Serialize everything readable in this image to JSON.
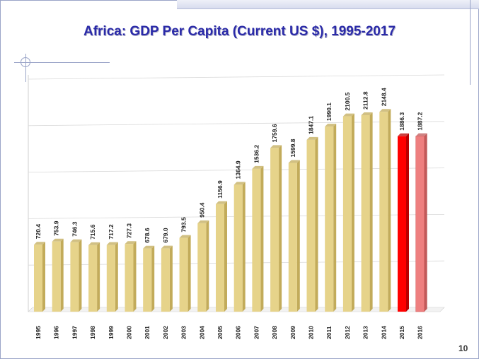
{
  "slide": {
    "title": "Africa: GDP Per Capita (Current US $), 1995-2017",
    "page_number": "10"
  },
  "colors": {
    "bar_normal": "#e6d38a",
    "bar_normal_side": "#c2ab5a",
    "bar_highlight": "#ff0000",
    "bar_highlight_side": "#b80000",
    "bar_light_red": "#ee7f7f",
    "bar_light_red_side": "#c05a5a",
    "title": "#2a2aa8",
    "grid": "#d9d9d9"
  },
  "chart_data": {
    "type": "bar",
    "title": "Africa: GDP Per Capita (Current US $), 1995-2017",
    "xlabel": "",
    "ylabel": "",
    "ylim": [
      0,
      2500
    ],
    "grid": true,
    "legend": "none",
    "categories": [
      "1995",
      "1996",
      "1997",
      "1998",
      "1999",
      "2000",
      "2001",
      "2002",
      "2003",
      "2004",
      "2005",
      "2006",
      "2007",
      "2008",
      "2009",
      "2010",
      "2011",
      "2012",
      "2013",
      "2014",
      "2015",
      "2016"
    ],
    "values": [
      720.4,
      753.9,
      746.3,
      715.6,
      717.2,
      727.3,
      678.6,
      679.0,
      793.5,
      950.4,
      1156.9,
      1364.9,
      1536.2,
      1759.6,
      1599.8,
      1847.1,
      1990.1,
      2100.5,
      2112.8,
      2148.4,
      1886.3,
      1887.2
    ],
    "labels": [
      "720.4",
      "753.9",
      "746.3",
      "715.6",
      "717.2",
      "727.3",
      "678.6",
      "679.0",
      "793.5",
      "950.4",
      "1156.9",
      "1364.9",
      "1536.2",
      "1759.6",
      "1599.8",
      "1847.1",
      "1990.1",
      "2100.5",
      "2112.8",
      "2148.4",
      "1886.3",
      "1887.2"
    ],
    "bar_styles": [
      "normal",
      "normal",
      "normal",
      "normal",
      "normal",
      "normal",
      "normal",
      "normal",
      "normal",
      "normal",
      "normal",
      "normal",
      "normal",
      "normal",
      "normal",
      "normal",
      "normal",
      "normal",
      "normal",
      "normal",
      "highlight",
      "light-red"
    ]
  }
}
